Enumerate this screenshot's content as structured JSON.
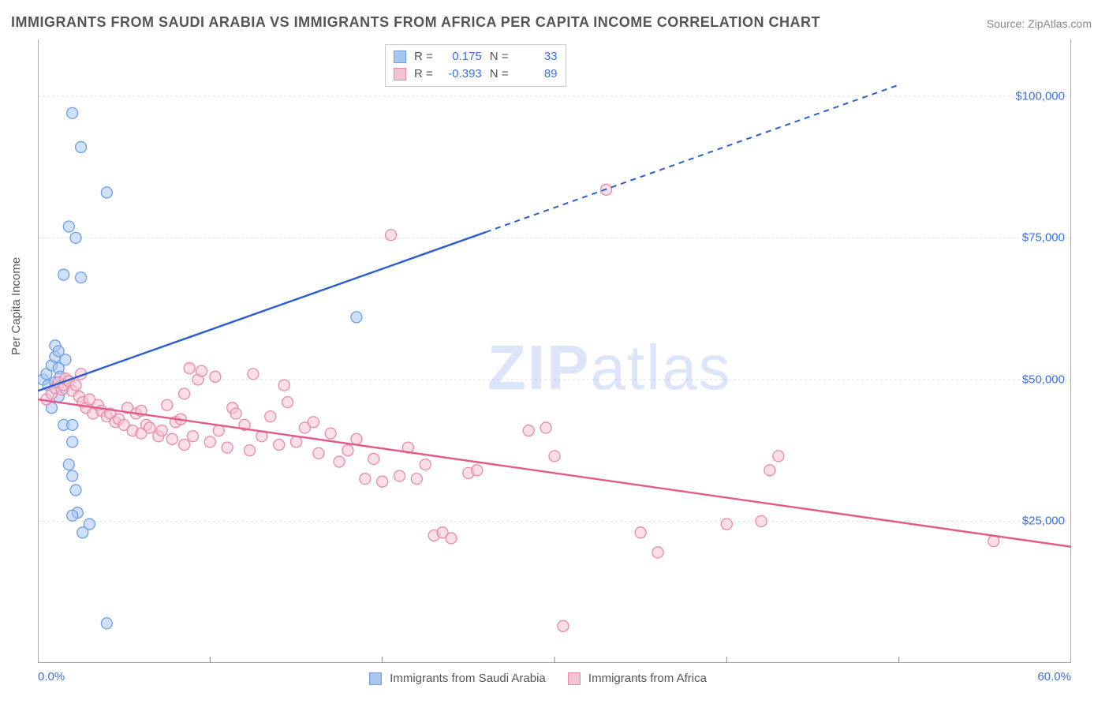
{
  "title": "IMMIGRANTS FROM SAUDI ARABIA VS IMMIGRANTS FROM AFRICA PER CAPITA INCOME CORRELATION CHART",
  "source": "Source: ZipAtlas.com",
  "watermark_a": "ZIP",
  "watermark_b": "atlas",
  "y_axis_label": "Per Capita Income",
  "chart": {
    "type": "scatter",
    "xlim": [
      0,
      60
    ],
    "ylim": [
      0,
      110000
    ],
    "background_color": "#ffffff",
    "grid_color": "#e0e0e0",
    "axis_color": "#888888",
    "tick_label_color": "#3b6fe0",
    "y_ticks": [
      {
        "v": 25000,
        "label": "$25,000"
      },
      {
        "v": 50000,
        "label": "$50,000"
      },
      {
        "v": 75000,
        "label": "$75,000"
      },
      {
        "v": 100000,
        "label": "$100,000"
      }
    ],
    "x_tick_min_label": "0.0%",
    "x_tick_max_label": "60.0%",
    "x_minor_ticks": [
      10,
      20,
      30,
      40,
      50
    ],
    "series": [
      {
        "name": "Immigrants from Saudi Arabia",
        "color_fill": "#a9c6ef",
        "color_stroke": "#6f9fe0",
        "line_color": "#2b5fd0",
        "marker_r": 7,
        "R_label": "R =",
        "R": "0.175",
        "N_label": "N =",
        "N": "33",
        "trend": {
          "x1": 0,
          "y1": 48000,
          "x2_solid": 26,
          "y2_solid": 76000,
          "x2": 50,
          "y2": 102000
        },
        "points": [
          [
            0.3,
            50000
          ],
          [
            0.5,
            51000
          ],
          [
            0.6,
            49000
          ],
          [
            0.8,
            52500
          ],
          [
            1.0,
            49500
          ],
          [
            1.0,
            54000
          ],
          [
            1.2,
            52000
          ],
          [
            1.3,
            50500
          ],
          [
            1.5,
            48500
          ],
          [
            1.6,
            53500
          ],
          [
            1.0,
            56000
          ],
          [
            1.2,
            55000
          ],
          [
            2.0,
            97000
          ],
          [
            2.5,
            91000
          ],
          [
            4.0,
            83000
          ],
          [
            1.8,
            77000
          ],
          [
            2.2,
            75000
          ],
          [
            1.5,
            68500
          ],
          [
            2.5,
            68000
          ],
          [
            18.5,
            61000
          ],
          [
            1.5,
            42000
          ],
          [
            2.0,
            42000
          ],
          [
            2.0,
            39000
          ],
          [
            1.8,
            35000
          ],
          [
            2.0,
            33000
          ],
          [
            2.2,
            30500
          ],
          [
            2.3,
            26500
          ],
          [
            2.0,
            26000
          ],
          [
            3.0,
            24500
          ],
          [
            2.6,
            23000
          ],
          [
            4.0,
            7000
          ],
          [
            1.2,
            47000
          ],
          [
            0.8,
            45000
          ]
        ]
      },
      {
        "name": "Immigrants from Africa",
        "color_fill": "#f5c4d2",
        "color_stroke": "#e88aa8",
        "line_color": "#e05a8a",
        "marker_r": 7,
        "R_label": "R =",
        "R": "-0.393",
        "N_label": "N =",
        "N": "89",
        "trend": {
          "x1": 0,
          "y1": 46500,
          "x2_solid": 60,
          "y2_solid": 20500,
          "x2": 60,
          "y2": 20500
        },
        "points": [
          [
            0.5,
            46500
          ],
          [
            0.8,
            47500
          ],
          [
            1.0,
            48500
          ],
          [
            1.2,
            49500
          ],
          [
            1.4,
            48200
          ],
          [
            1.5,
            49000
          ],
          [
            1.6,
            50200
          ],
          [
            1.8,
            49700
          ],
          [
            2.0,
            48000
          ],
          [
            2.2,
            49000
          ],
          [
            2.4,
            47000
          ],
          [
            2.5,
            51000
          ],
          [
            2.6,
            46000
          ],
          [
            2.8,
            45000
          ],
          [
            3.0,
            46500
          ],
          [
            3.2,
            44000
          ],
          [
            3.5,
            45500
          ],
          [
            3.7,
            44500
          ],
          [
            4.0,
            43500
          ],
          [
            4.2,
            44000
          ],
          [
            4.5,
            42500
          ],
          [
            4.7,
            43000
          ],
          [
            5.0,
            42000
          ],
          [
            5.2,
            45000
          ],
          [
            5.5,
            41000
          ],
          [
            5.7,
            44000
          ],
          [
            6.0,
            40500
          ],
          [
            6.3,
            42000
          ],
          [
            6.5,
            41500
          ],
          [
            7.0,
            40000
          ],
          [
            7.2,
            41000
          ],
          [
            7.5,
            45500
          ],
          [
            7.8,
            39500
          ],
          [
            8.0,
            42500
          ],
          [
            8.3,
            43000
          ],
          [
            8.5,
            38500
          ],
          [
            8.8,
            52000
          ],
          [
            9.0,
            40000
          ],
          [
            9.3,
            50000
          ],
          [
            9.5,
            51500
          ],
          [
            10.0,
            39000
          ],
          [
            10.3,
            50500
          ],
          [
            10.5,
            41000
          ],
          [
            11.0,
            38000
          ],
          [
            11.3,
            45000
          ],
          [
            11.5,
            44000
          ],
          [
            12.0,
            42000
          ],
          [
            12.3,
            37500
          ],
          [
            12.5,
            51000
          ],
          [
            13.0,
            40000
          ],
          [
            13.5,
            43500
          ],
          [
            14.0,
            38500
          ],
          [
            14.3,
            49000
          ],
          [
            14.5,
            46000
          ],
          [
            15.0,
            39000
          ],
          [
            15.5,
            41500
          ],
          [
            16.0,
            42500
          ],
          [
            16.3,
            37000
          ],
          [
            17.0,
            40500
          ],
          [
            17.5,
            35500
          ],
          [
            18.0,
            37500
          ],
          [
            18.5,
            39500
          ],
          [
            19.0,
            32500
          ],
          [
            19.5,
            36000
          ],
          [
            20.0,
            32000
          ],
          [
            20.5,
            75500
          ],
          [
            21.0,
            33000
          ],
          [
            21.5,
            38000
          ],
          [
            22.0,
            32500
          ],
          [
            22.5,
            35000
          ],
          [
            23.0,
            22500
          ],
          [
            23.5,
            23000
          ],
          [
            24.0,
            22000
          ],
          [
            25.0,
            33500
          ],
          [
            25.5,
            34000
          ],
          [
            28.5,
            41000
          ],
          [
            29.5,
            41500
          ],
          [
            30.0,
            36500
          ],
          [
            30.5,
            6500
          ],
          [
            33.0,
            83500
          ],
          [
            35.0,
            23000
          ],
          [
            36.0,
            19500
          ],
          [
            40.0,
            24500
          ],
          [
            42.0,
            25000
          ],
          [
            42.5,
            34000
          ],
          [
            43.0,
            36500
          ],
          [
            55.5,
            21500
          ],
          [
            8.5,
            47500
          ],
          [
            6.0,
            44500
          ]
        ]
      }
    ]
  }
}
